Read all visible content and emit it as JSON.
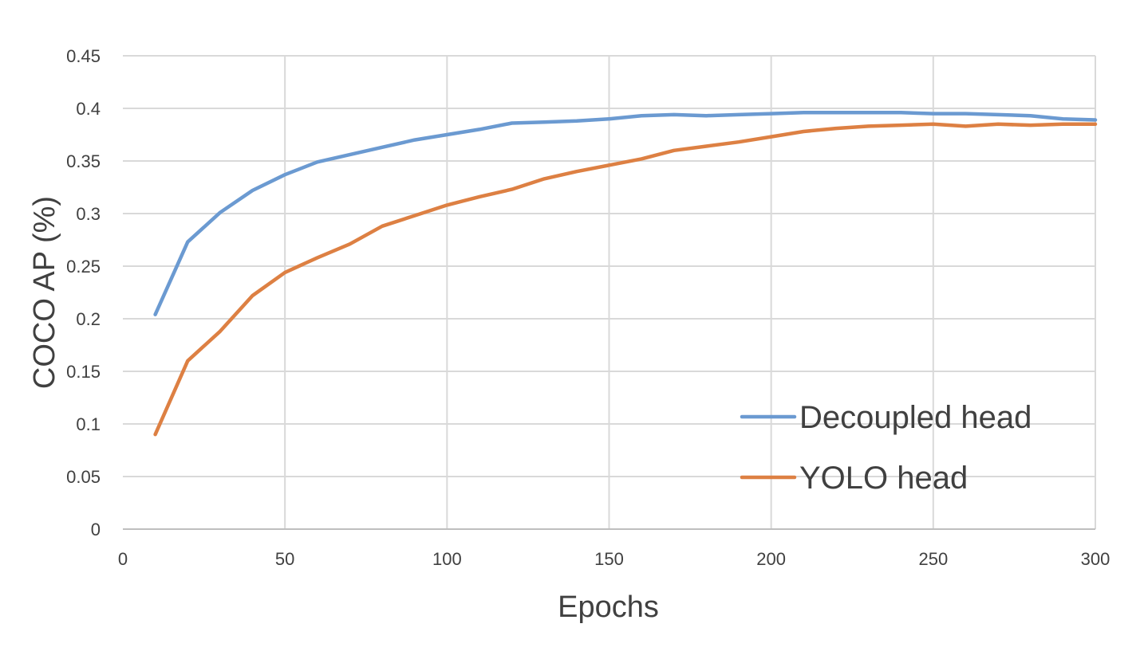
{
  "chart_data": {
    "type": "line",
    "title": "",
    "xlabel": "Epochs",
    "ylabel": "COCO AP (%)",
    "xlim": [
      0,
      300
    ],
    "ylim": [
      0,
      0.45
    ],
    "xticks": [
      "0",
      "50",
      "100",
      "150",
      "200",
      "250",
      "300"
    ],
    "yticks": [
      "0",
      "0.05",
      "0.1",
      "0.15",
      "0.2",
      "0.25",
      "0.3",
      "0.35",
      "0.4",
      "0.45"
    ],
    "grid": true,
    "legend_position": "bottom-right",
    "x": [
      10,
      20,
      30,
      40,
      50,
      60,
      70,
      80,
      90,
      100,
      110,
      120,
      130,
      140,
      150,
      160,
      170,
      180,
      190,
      200,
      210,
      220,
      230,
      240,
      250,
      260,
      270,
      280,
      290,
      300
    ],
    "series": [
      {
        "name": "Decoupled head",
        "color": "#6b9ad1",
        "values": [
          0.204,
          0.273,
          0.301,
          0.322,
          0.337,
          0.349,
          0.356,
          0.363,
          0.37,
          0.375,
          0.38,
          0.386,
          0.387,
          0.388,
          0.39,
          0.393,
          0.394,
          0.393,
          0.394,
          0.395,
          0.396,
          0.396,
          0.396,
          0.396,
          0.395,
          0.395,
          0.394,
          0.393,
          0.39,
          0.389
        ]
      },
      {
        "name": "YOLO head",
        "color": "#dd8043",
        "values": [
          0.09,
          0.16,
          0.188,
          0.222,
          0.244,
          0.258,
          0.271,
          0.288,
          0.298,
          0.308,
          0.316,
          0.323,
          0.333,
          0.34,
          0.346,
          0.352,
          0.36,
          0.364,
          0.368,
          0.373,
          0.378,
          0.381,
          0.383,
          0.384,
          0.385,
          0.383,
          0.385,
          0.384,
          0.385,
          0.385
        ]
      }
    ]
  }
}
